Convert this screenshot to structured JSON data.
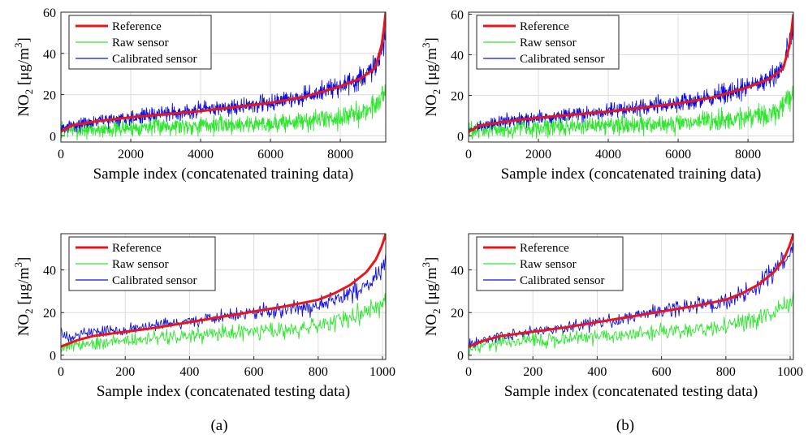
{
  "figure": {
    "panel_labels": [
      "(a)",
      "(b)"
    ]
  },
  "colors": {
    "reference": "#e8161b",
    "raw": "#2ee62e",
    "calibrated": "#1010e0",
    "grid": "#dcdcdc",
    "axis": "#262626"
  },
  "chart_data": [
    {
      "type": "line",
      "panel": "(a)",
      "xlabel": "Sample index (concatenated training data)",
      "ylabel": "NO2 [μg/m3]",
      "xlim": [
        0,
        9300
      ],
      "ylim": [
        -3,
        60
      ],
      "xticks": [
        0,
        2000,
        4000,
        6000,
        8000
      ],
      "yticks": [
        0,
        20,
        40,
        60
      ],
      "grid": true,
      "legend": "top-left",
      "series": [
        {
          "name": "Reference",
          "x": [
            0,
            300,
            1000,
            2000,
            3000,
            4000,
            5000,
            6000,
            7000,
            8000,
            8600,
            9000,
            9200,
            9300
          ],
          "values": [
            2,
            5,
            7,
            9,
            10.5,
            12,
            14,
            16,
            19,
            24,
            28,
            33,
            45,
            60
          ]
        },
        {
          "name": "Raw sensor",
          "x": [
            0,
            1000,
            2000,
            3000,
            4000,
            5000,
            6000,
            7000,
            8000,
            8600,
            9000,
            9300
          ],
          "values": [
            3,
            3,
            4,
            5,
            5,
            5.5,
            6,
            7,
            9,
            11,
            15,
            22
          ]
        },
        {
          "name": "Calibrated sensor",
          "x": [
            0,
            300,
            1000,
            2000,
            3000,
            4000,
            5000,
            6000,
            7000,
            8000,
            8600,
            9000,
            9300
          ],
          "values": [
            3,
            5,
            7,
            9,
            11,
            12.5,
            14,
            16,
            19,
            24,
            28,
            33,
            48
          ]
        }
      ]
    },
    {
      "type": "line",
      "panel": "(b)",
      "xlabel": "Sample index (concatenated training data)",
      "ylabel": "NO2 [μg/m3]",
      "xlim": [
        0,
        9300
      ],
      "ylim": [
        -3,
        61
      ],
      "xticks": [
        0,
        2000,
        4000,
        6000,
        8000
      ],
      "yticks": [
        0,
        20,
        40,
        60
      ],
      "grid": true,
      "legend": "top-left",
      "series": [
        {
          "name": "Reference",
          "x": [
            0,
            300,
            1000,
            2000,
            3000,
            4000,
            5000,
            6000,
            7000,
            8000,
            8600,
            9000,
            9200,
            9300
          ],
          "values": [
            2,
            5,
            7,
            9,
            10.5,
            12,
            14,
            16,
            19,
            24,
            28,
            33,
            45,
            60
          ]
        },
        {
          "name": "Raw sensor",
          "x": [
            0,
            1000,
            2000,
            3000,
            4000,
            5000,
            6000,
            7000,
            8000,
            8600,
            9000,
            9300
          ],
          "values": [
            3,
            3,
            4,
            5,
            5,
            5.5,
            6,
            7,
            9,
            11,
            15,
            22
          ]
        },
        {
          "name": "Calibrated sensor",
          "x": [
            0,
            300,
            1000,
            2000,
            3000,
            4000,
            5000,
            6000,
            7000,
            8000,
            8600,
            9000,
            9300
          ],
          "values": [
            2,
            5,
            7,
            9,
            10.5,
            12,
            14,
            16,
            19,
            24,
            28,
            33,
            55
          ]
        }
      ]
    },
    {
      "type": "line",
      "panel": "(a)",
      "xlabel": "Sample index (concatenated testing data)",
      "ylabel": "NO2 [μg/m3]",
      "xlim": [
        0,
        1010
      ],
      "ylim": [
        -2,
        57
      ],
      "xticks": [
        0,
        200,
        400,
        600,
        800,
        1000
      ],
      "yticks": [
        0,
        20,
        40
      ],
      "grid": true,
      "legend": "top-left",
      "series": [
        {
          "name": "Reference",
          "x": [
            0,
            50,
            100,
            200,
            300,
            400,
            500,
            600,
            700,
            800,
            850,
            900,
            950,
            980,
            1000,
            1010
          ],
          "values": [
            4,
            7,
            9,
            11,
            13,
            15.5,
            18,
            20.5,
            23,
            26,
            29,
            33,
            39,
            45,
            52,
            57
          ]
        },
        {
          "name": "Raw sensor",
          "x": [
            0,
            100,
            200,
            300,
            400,
            500,
            600,
            700,
            800,
            900,
            950,
            1000,
            1010
          ],
          "values": [
            4,
            6,
            7,
            8,
            9,
            10,
            11,
            12,
            14,
            17,
            20,
            24,
            27
          ]
        },
        {
          "name": "Calibrated sensor",
          "x": [
            0,
            5,
            50,
            100,
            200,
            300,
            400,
            500,
            600,
            700,
            800,
            900,
            950,
            1000,
            1010
          ],
          "values": [
            15,
            8,
            10,
            11,
            12,
            13.5,
            16,
            18,
            20,
            21,
            24,
            29,
            33,
            40,
            44
          ]
        }
      ]
    },
    {
      "type": "line",
      "panel": "(b)",
      "xlabel": "Sample index (concatenated testing data)",
      "ylabel": "NO2 [μg/m3]",
      "xlim": [
        0,
        1010
      ],
      "ylim": [
        -2,
        57
      ],
      "xticks": [
        0,
        200,
        400,
        600,
        800,
        1000
      ],
      "yticks": [
        0,
        20,
        40
      ],
      "grid": true,
      "legend": "top-left",
      "series": [
        {
          "name": "Reference",
          "x": [
            0,
            50,
            100,
            200,
            300,
            400,
            500,
            600,
            700,
            800,
            850,
            900,
            950,
            980,
            1000,
            1010
          ],
          "values": [
            4,
            7,
            9,
            11,
            13,
            15.5,
            18,
            20.5,
            23,
            26,
            29,
            33,
            39,
            45,
            52,
            57
          ]
        },
        {
          "name": "Raw sensor",
          "x": [
            0,
            100,
            200,
            300,
            400,
            500,
            600,
            700,
            800,
            900,
            950,
            1000,
            1010
          ],
          "values": [
            4,
            6,
            7,
            8,
            9,
            10,
            11,
            12,
            14,
            17,
            20,
            24,
            27
          ]
        },
        {
          "name": "Calibrated sensor",
          "x": [
            0,
            50,
            100,
            200,
            300,
            400,
            500,
            600,
            700,
            800,
            850,
            900,
            950,
            1000,
            1010
          ],
          "values": [
            5,
            7,
            9,
            11,
            13,
            15.5,
            18,
            20.5,
            23,
            25,
            28,
            33,
            40,
            50,
            53
          ]
        }
      ]
    }
  ]
}
